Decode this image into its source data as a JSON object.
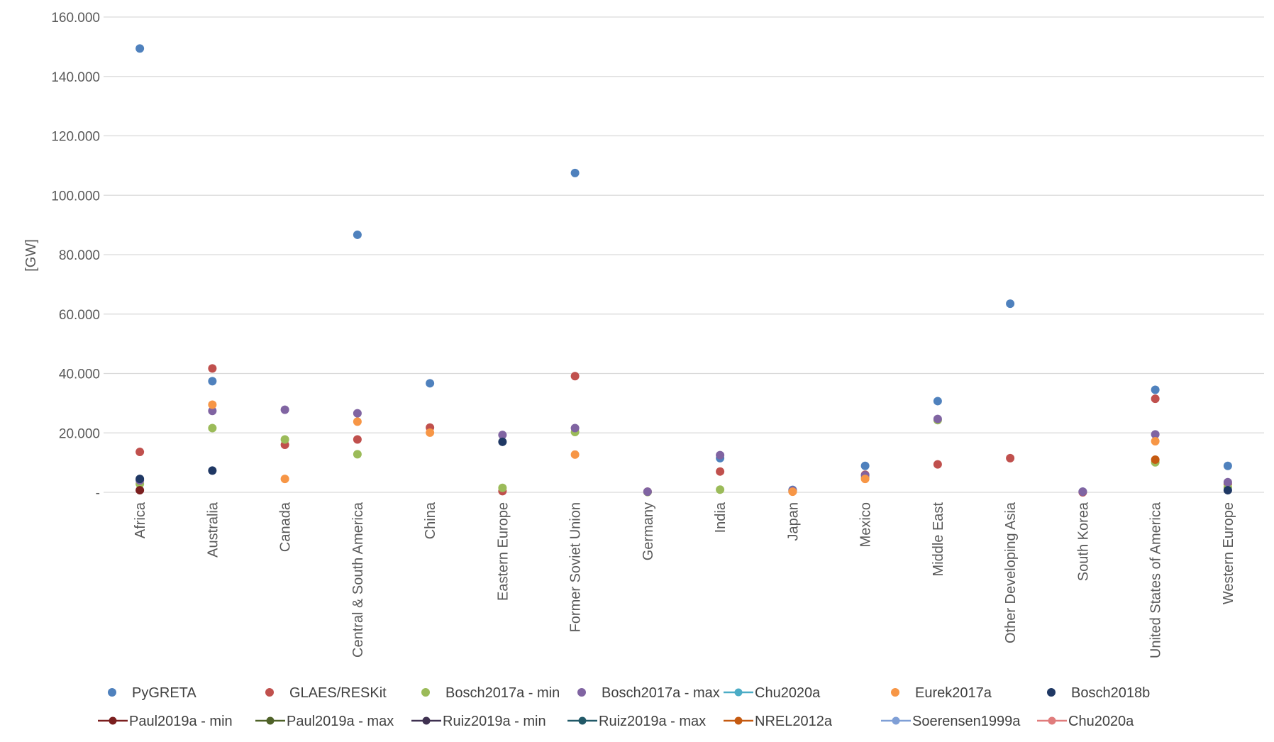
{
  "chart_data": {
    "type": "scatter",
    "ylabel": "[GW]",
    "ylim": [
      0,
      160000
    ],
    "yticks": [
      0,
      20000,
      40000,
      60000,
      80000,
      100000,
      120000,
      140000,
      160000
    ],
    "ytick_labels": [
      "-",
      "20.000",
      "40.000",
      "60.000",
      "80.000",
      "100.000",
      "120.000",
      "140.000",
      "160.000"
    ],
    "grid": "horizontal",
    "legend_position": "bottom",
    "categories": [
      "Africa",
      "Australia",
      "Canada",
      "Central & South America",
      "China",
      "Eastern Europe",
      "Former Soviet Union",
      "Germany",
      "India",
      "Japan",
      "Mexico",
      "Middle East",
      "Other Developing Asia",
      "South Korea",
      "United States of America",
      "Western Europe"
    ],
    "series": [
      {
        "name": "PyGRETA",
        "marker": "dot",
        "color": "#4f81bd",
        "values": [
          149400,
          37400,
          null,
          86700,
          36700,
          null,
          107500,
          null,
          11500,
          800,
          8900,
          30700,
          63500,
          200,
          34500,
          8900
        ]
      },
      {
        "name": "GLAES/RESKit",
        "marker": "dot",
        "color": "#c0504d",
        "values": [
          13600,
          41700,
          16000,
          17800,
          21800,
          400,
          39100,
          200,
          7000,
          300,
          5900,
          9400,
          11500,
          0,
          31500,
          2800
        ]
      },
      {
        "name": "Bosch2017a - min",
        "marker": "dot",
        "color": "#9bbb59",
        "values": [
          2800,
          21600,
          17800,
          12800,
          null,
          1500,
          20300,
          100,
          900,
          500,
          5000,
          24300,
          null,
          null,
          10100,
          1700
        ]
      },
      {
        "name": "Bosch2017a - max",
        "marker": "dot",
        "color": "#8064a2",
        "values": [
          4000,
          27400,
          27800,
          26600,
          null,
          19300,
          21600,
          200,
          12500,
          600,
          5700,
          24700,
          null,
          200,
          19500,
          3400
        ]
      },
      {
        "name": "Chu2020a",
        "marker": "line",
        "color": "#4bacc6",
        "values": []
      },
      {
        "name": "Eurek2017a",
        "marker": "dot",
        "color": "#f79646",
        "values": [
          null,
          29500,
          4500,
          23800,
          20100,
          null,
          12700,
          null,
          null,
          200,
          4500,
          null,
          null,
          null,
          17200,
          null
        ]
      },
      {
        "name": "Bosch2018b",
        "marker": "dot",
        "color": "#1f3864",
        "values": [
          4500,
          7300,
          null,
          null,
          null,
          17000,
          null,
          null,
          null,
          null,
          null,
          null,
          null,
          null,
          null,
          700
        ]
      },
      {
        "name": "Paul2019a - min",
        "marker": "line",
        "color": "#7b1f1f",
        "values": [
          700,
          null,
          null,
          null,
          null,
          null,
          null,
          null,
          null,
          null,
          null,
          null,
          null,
          null,
          null,
          null
        ]
      },
      {
        "name": "Paul2019a - max",
        "marker": "line",
        "color": "#4f6228",
        "values": []
      },
      {
        "name": "Ruiz2019a - min",
        "marker": "line",
        "color": "#3f3151",
        "values": []
      },
      {
        "name": "Ruiz2019a - max",
        "marker": "line",
        "color": "#215968",
        "values": []
      },
      {
        "name": "NREL2012a",
        "marker": "line",
        "color": "#c55a11",
        "values": [
          null,
          null,
          null,
          null,
          null,
          null,
          null,
          null,
          null,
          null,
          null,
          null,
          null,
          null,
          11000,
          null
        ]
      },
      {
        "name": "Soerensen1999a",
        "marker": "line",
        "color": "#7f9fd6",
        "values": []
      },
      {
        "name": "Chu2020a",
        "marker": "line",
        "color": "#e07c7c",
        "values": []
      }
    ]
  }
}
